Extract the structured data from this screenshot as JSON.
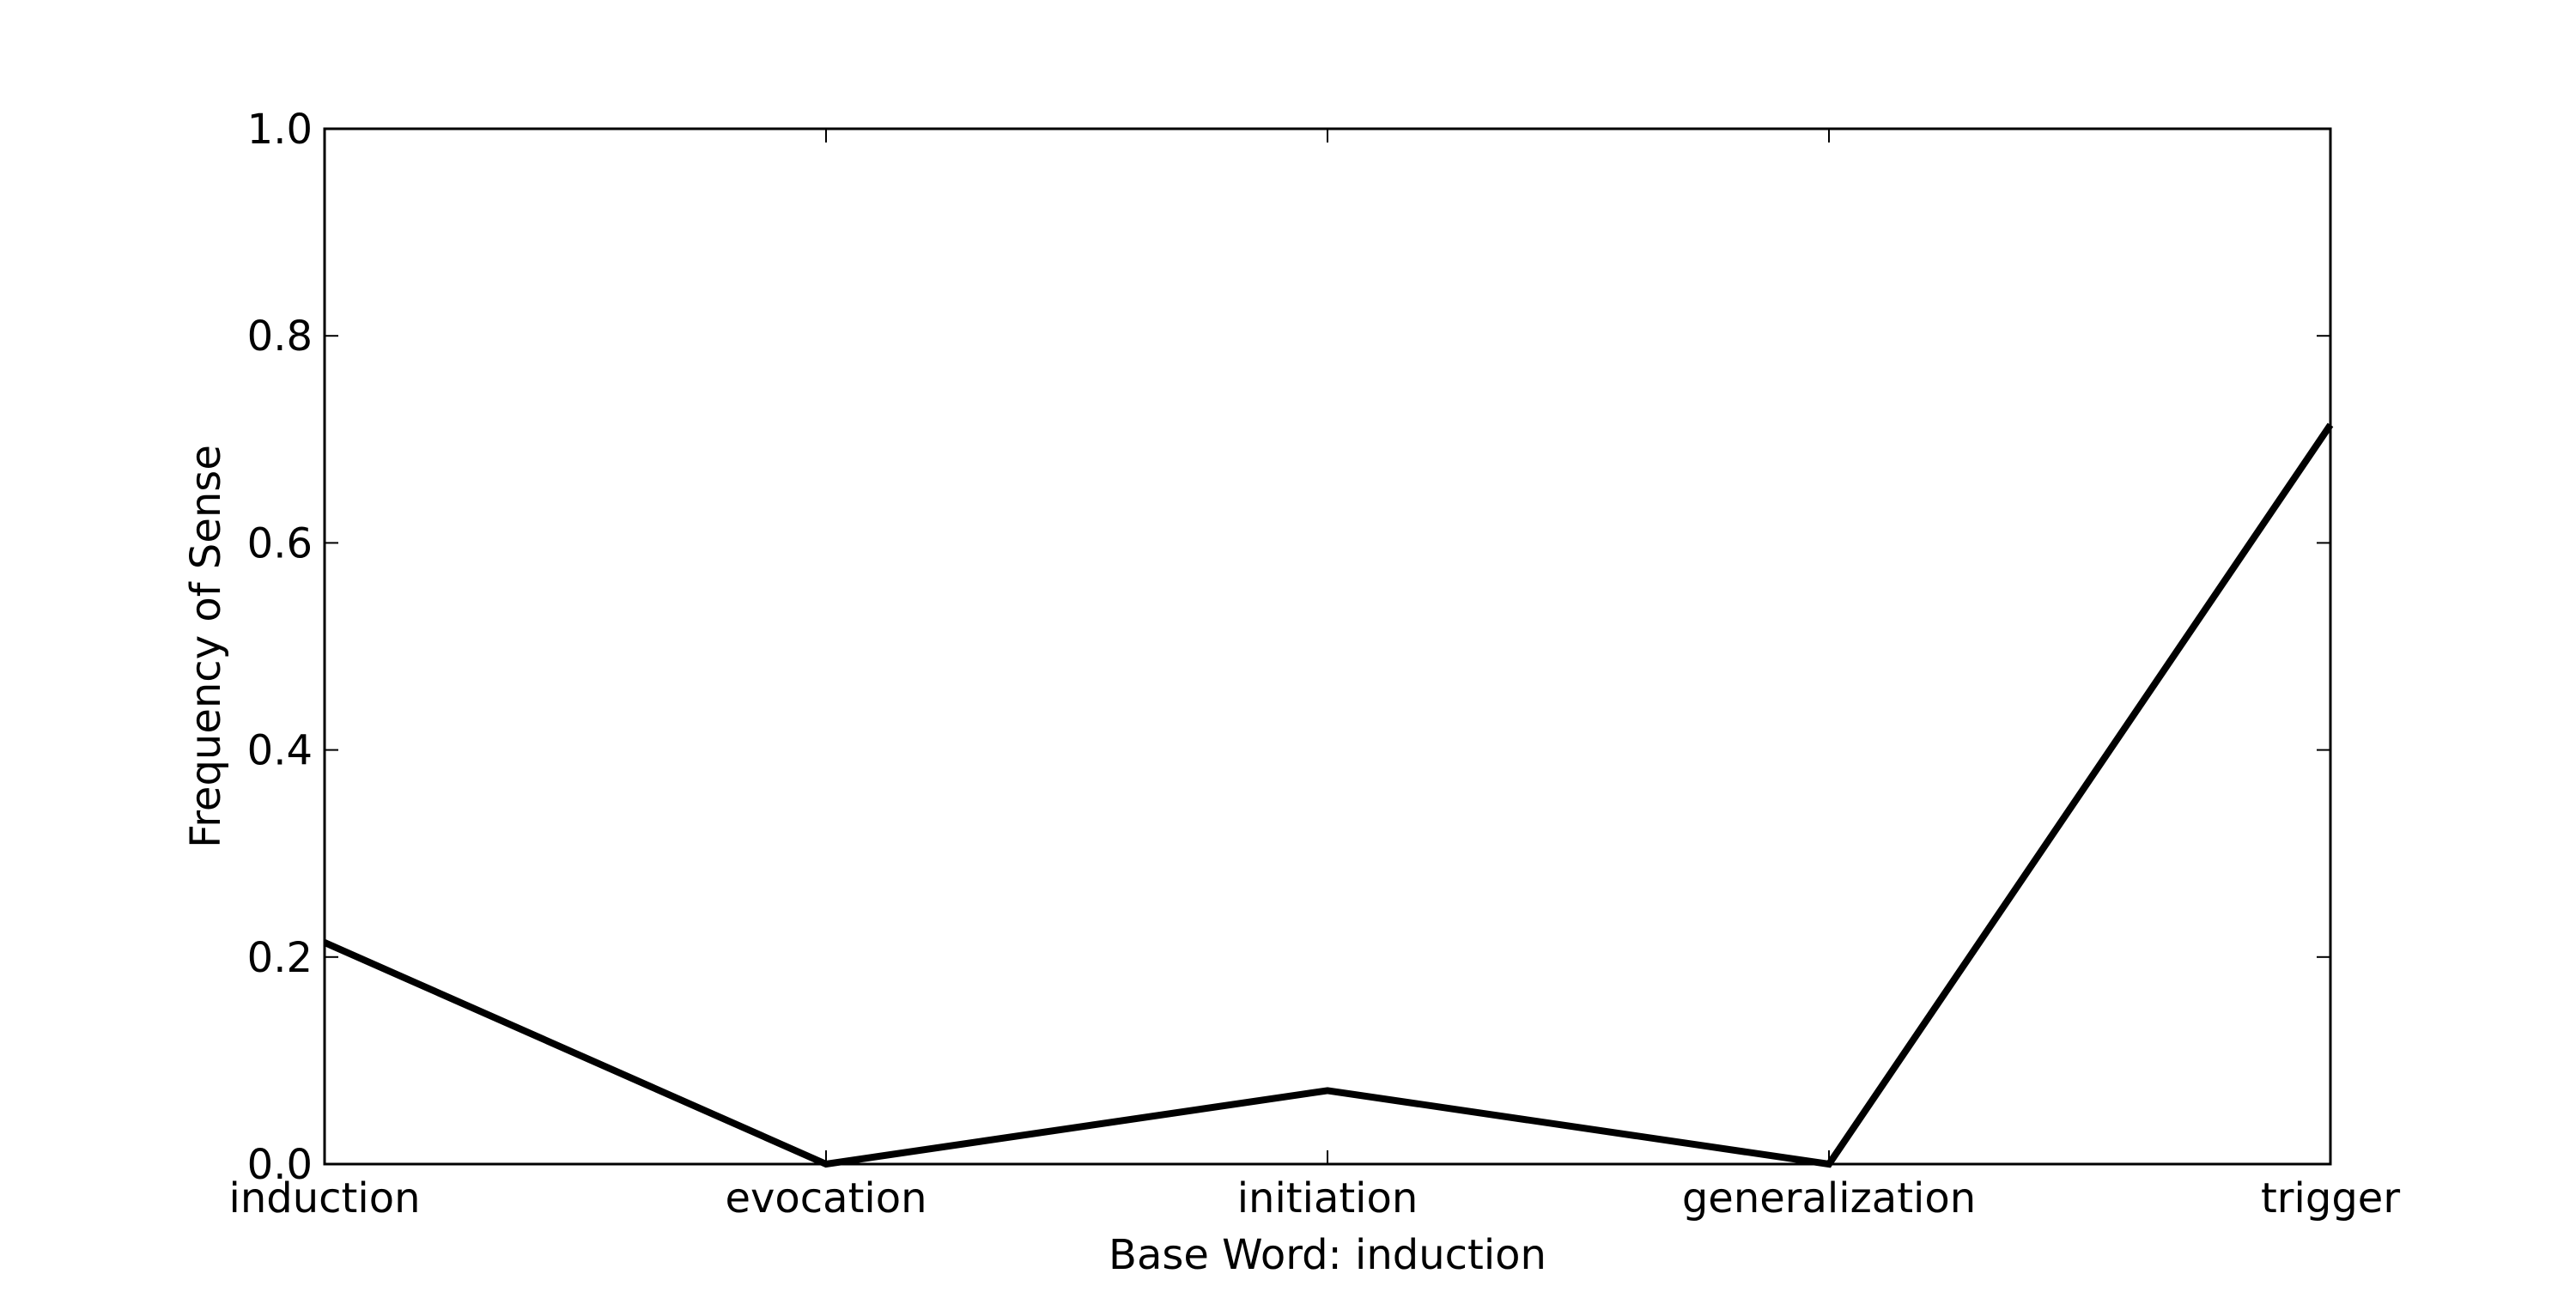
{
  "chart_data": {
    "type": "line",
    "title": "",
    "xlabel": "Base Word: induction",
    "ylabel": "Frequency of Sense",
    "categories": [
      "induction",
      "evocation",
      "initiation",
      "generalization",
      "trigger"
    ],
    "series": [
      {
        "values": [
          0.214,
          0.0,
          0.071,
          0.0,
          0.714
        ]
      }
    ],
    "ylim": [
      0.0,
      1.0
    ],
    "yticks": [
      "0.0",
      "0.2",
      "0.4",
      "0.6",
      "0.8",
      "1.0"
    ],
    "grid": false,
    "legend": "none",
    "line_color": "#000000"
  }
}
